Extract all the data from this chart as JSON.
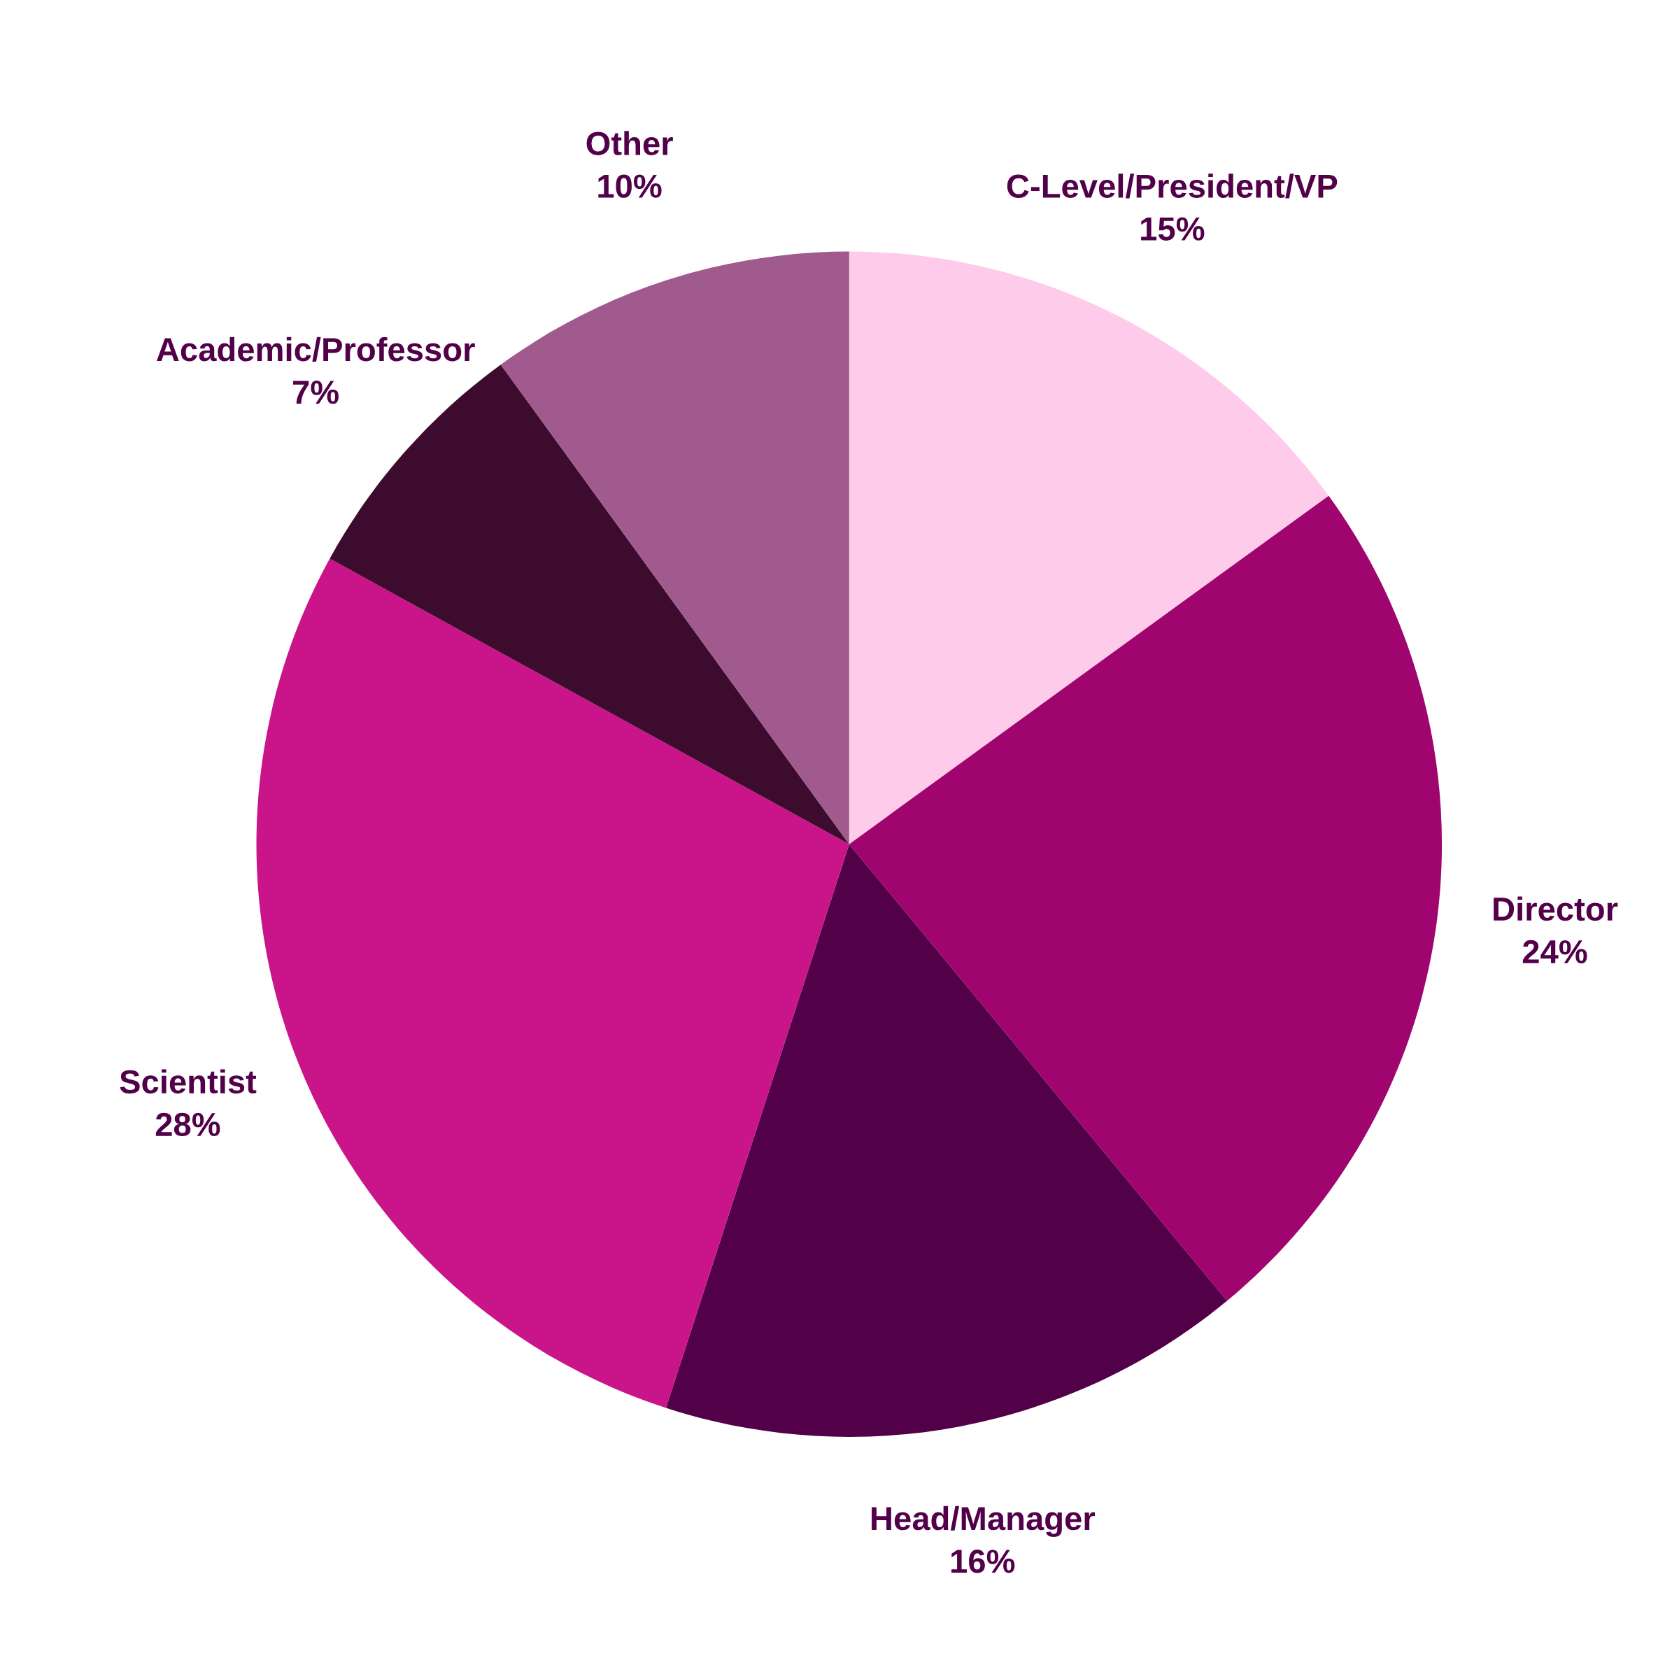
{
  "chart_data": {
    "type": "pie",
    "categories": [
      "C-Level/President/VP",
      "Director",
      "Head/Manager",
      "Scientist",
      "Academic/Professor",
      "Other"
    ],
    "values": [
      15,
      24,
      16,
      28,
      7,
      10
    ],
    "value_labels": [
      "15%",
      "24%",
      "16%",
      "28%",
      "7%",
      "10%"
    ],
    "colors": [
      "#ffcbea",
      "#a0056f",
      "#520047",
      "#ca148a",
      "#3d0b2d",
      "#a05a8d"
    ]
  }
}
